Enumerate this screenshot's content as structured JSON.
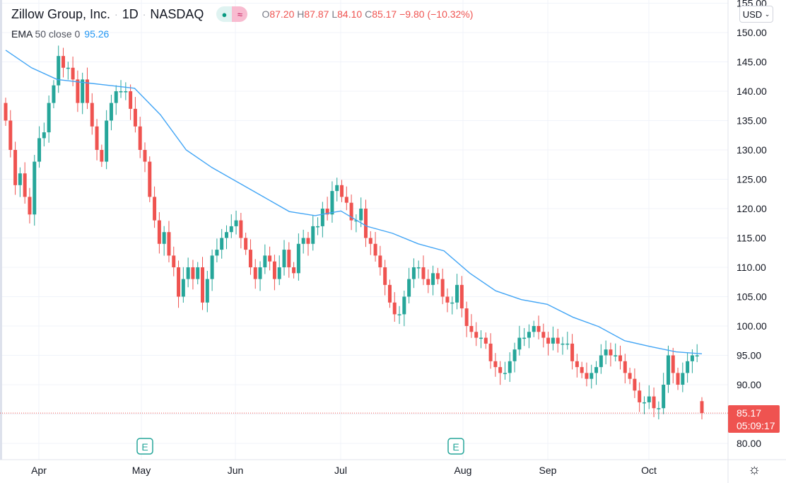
{
  "header": {
    "symbol": "Zillow Group, Inc.",
    "interval": "1D",
    "exchange": "NASDAQ",
    "separator": "·",
    "market_status_icon": "dot-icon",
    "waves_icon": "≈",
    "ohlc": {
      "o_label": "O",
      "o": "87.20",
      "h_label": "H",
      "h": "87.87",
      "l_label": "L",
      "l": "84.10",
      "c_label": "C",
      "c": "85.17",
      "change": "−9.80 (−10.32%)"
    }
  },
  "indicator": {
    "name": "EMA",
    "params": "50 close 0",
    "value": "95.26",
    "color": "#2196f3"
  },
  "currency": "USD",
  "last_price": {
    "value": "85.17",
    "countdown": "05:09:17",
    "color": "#ef5350"
  },
  "colors": {
    "up": "#26a69a",
    "down": "#ef5350",
    "ema": "#42a5f5"
  },
  "chart_data": {
    "type": "candlestick",
    "y_ticks": [
      "80.00",
      "85.00",
      "90.00",
      "95.00",
      "100.00",
      "105.00",
      "110.00",
      "115.00",
      "120.00",
      "125.00",
      "130.00",
      "135.00",
      "140.00",
      "145.00",
      "150.00",
      "155.00"
    ],
    "ylim": [
      78,
      156
    ],
    "x_ticks": [
      "Apr",
      "May",
      "Jun",
      "Jul",
      "Aug",
      "Sep",
      "Oct"
    ],
    "earnings_marker": "E",
    "closes": [
      135,
      130,
      124,
      126,
      122,
      119,
      128,
      132,
      133,
      138,
      141,
      146,
      144,
      144,
      142,
      138,
      142,
      138,
      134,
      130,
      128,
      135,
      138,
      140,
      140,
      140,
      137,
      134,
      130,
      128,
      122,
      118,
      114,
      116,
      112,
      110,
      105,
      108,
      110,
      108,
      110,
      104,
      108,
      112,
      113,
      115,
      116,
      117,
      118,
      115,
      113,
      110,
      108,
      110,
      112,
      111,
      108,
      110,
      113,
      110,
      109,
      114,
      115,
      114,
      117,
      117,
      120,
      119,
      123,
      124,
      122,
      121,
      118,
      118,
      120,
      115,
      114,
      112,
      110,
      107,
      104,
      102,
      102,
      105,
      108,
      110,
      110,
      108,
      107,
      109,
      108,
      105,
      104,
      104,
      107,
      103,
      100,
      99,
      98,
      98,
      97,
      94,
      93,
      92,
      92,
      94,
      96,
      98,
      98,
      99,
      100,
      99,
      98,
      97,
      98,
      97,
      97,
      97,
      94,
      93,
      92,
      91,
      92,
      93,
      95,
      96,
      95,
      95,
      94,
      92,
      91,
      89,
      87,
      87,
      88,
      86,
      86,
      90,
      95,
      92,
      90,
      92,
      94,
      95,
      95,
      85.17
    ],
    "first_open": 138,
    "last_candle": {
      "o": 87.2,
      "h": 87.87,
      "l": 84.1,
      "c": 85.17
    },
    "ema_50": [
      147,
      144,
      142,
      141.5,
      141,
      140.5,
      136,
      130,
      127,
      124.5,
      122,
      119.5,
      118.8,
      119.6,
      117,
      115.8,
      114,
      112.8,
      109,
      106,
      104.5,
      103.7,
      101.5,
      99.9,
      97.5,
      96.5,
      95.6,
      95.26
    ]
  }
}
